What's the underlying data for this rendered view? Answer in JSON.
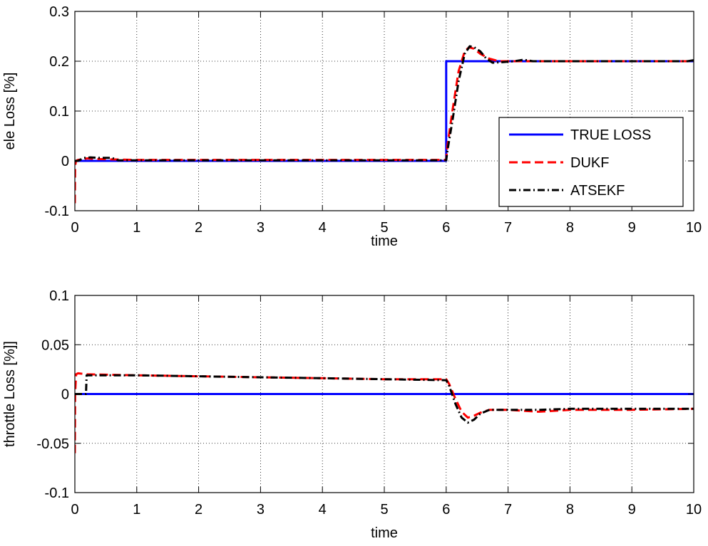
{
  "chart_data": [
    {
      "type": "line",
      "xlabel": "time",
      "ylabel": "ele Loss [%]",
      "xlim": [
        0,
        10
      ],
      "ylim": [
        -0.1,
        0.3
      ],
      "xticks": [
        "0",
        "1",
        "2",
        "3",
        "4",
        "5",
        "6",
        "7",
        "8",
        "9",
        "10"
      ],
      "yticks": [
        "-0.1",
        "0",
        "0.1",
        "0.2",
        "0.3"
      ],
      "grid": true,
      "legend_placement": "right",
      "legend_entries": [
        "TRUE LOSS",
        "DUKF",
        "ATSEKF"
      ],
      "series": [
        {
          "name": "TRUE LOSS",
          "color": "#0000ff",
          "dash": "solid",
          "x": [
            0,
            6,
            6,
            10
          ],
          "y": [
            0,
            0,
            0.2,
            0.2
          ]
        },
        {
          "name": "DUKF",
          "color": "#ff0000",
          "dash": "dashed",
          "x": [
            0,
            0.005,
            0.02,
            0.05,
            0.1,
            0.2,
            0.3,
            0.6,
            1,
            6,
            6.02,
            6.1,
            6.2,
            6.3,
            6.37,
            6.45,
            6.55,
            6.7,
            6.85,
            7,
            7.3,
            8,
            9,
            9.9,
            10
          ],
          "y": [
            -0.085,
            -0.01,
            0.0,
            0.002,
            0.003,
            0.005,
            0.004,
            0.003,
            0.002,
            0.002,
            0.03,
            0.1,
            0.18,
            0.22,
            0.228,
            0.225,
            0.215,
            0.205,
            0.2,
            0.2,
            0.2,
            0.2,
            0.2,
            0.2,
            0.2
          ]
        },
        {
          "name": "ATSEKF",
          "color": "#000000",
          "dash": "dashdot",
          "x": [
            0,
            0.05,
            0.15,
            0.25,
            0.4,
            0.6,
            0.7,
            1,
            6,
            6.02,
            6.1,
            6.2,
            6.3,
            6.38,
            6.45,
            6.55,
            6.65,
            6.75,
            6.9,
            7.1,
            7.25,
            7.4,
            8,
            9,
            9.9,
            10
          ],
          "y": [
            0,
            0.0,
            0.006,
            0.007,
            0.006,
            0.006,
            0.001,
            0.001,
            0.001,
            0.02,
            0.08,
            0.16,
            0.215,
            0.23,
            0.228,
            0.22,
            0.205,
            0.197,
            0.198,
            0.2,
            0.203,
            0.2,
            0.2,
            0.2,
            0.2,
            0.202
          ]
        }
      ]
    },
    {
      "type": "line",
      "xlabel": "time",
      "ylabel": "throttle Loss [%]]",
      "xlim": [
        0,
        10
      ],
      "ylim": [
        -0.1,
        0.1
      ],
      "xticks": [
        "0",
        "1",
        "2",
        "3",
        "4",
        "5",
        "6",
        "7",
        "8",
        "9",
        "10"
      ],
      "yticks": [
        "-0.1",
        "-0.05",
        "0",
        "0.05",
        "0.1"
      ],
      "grid": true,
      "series": [
        {
          "name": "TRUE LOSS",
          "color": "#0000ff",
          "dash": "solid",
          "x": [
            0,
            10
          ],
          "y": [
            0,
            0
          ]
        },
        {
          "name": "DUKF",
          "color": "#ff0000",
          "dash": "dashed",
          "x": [
            0,
            0.005,
            0.02,
            0.05,
            0.2,
            1,
            2,
            3,
            4,
            5,
            6,
            6.05,
            6.15,
            6.25,
            6.35,
            6.45,
            6.55,
            6.7,
            7,
            7.5,
            8,
            8.5,
            9,
            10
          ],
          "y": [
            -0.06,
            0.0,
            0.02,
            0.021,
            0.02,
            0.019,
            0.018,
            0.017,
            0.016,
            0.015,
            0.015,
            0.01,
            -0.005,
            -0.018,
            -0.024,
            -0.022,
            -0.019,
            -0.016,
            -0.016,
            -0.018,
            -0.016,
            -0.016,
            -0.016,
            -0.015
          ]
        },
        {
          "name": "ATSEKF",
          "color": "#000000",
          "dash": "dashdot",
          "x": [
            0,
            0.15,
            0.18,
            0.19,
            0.3,
            1,
            2,
            3,
            4,
            5,
            6,
            6.05,
            6.15,
            6.25,
            6.35,
            6.45,
            6.55,
            6.7,
            7,
            7.5,
            8,
            8.5,
            9,
            10
          ],
          "y": [
            0,
            0,
            0,
            0.019,
            0.019,
            0.019,
            0.018,
            0.017,
            0.016,
            0.015,
            0.014,
            0.008,
            -0.01,
            -0.024,
            -0.029,
            -0.026,
            -0.02,
            -0.016,
            -0.016,
            -0.016,
            -0.015,
            -0.015,
            -0.015,
            -0.015
          ]
        }
      ]
    }
  ]
}
